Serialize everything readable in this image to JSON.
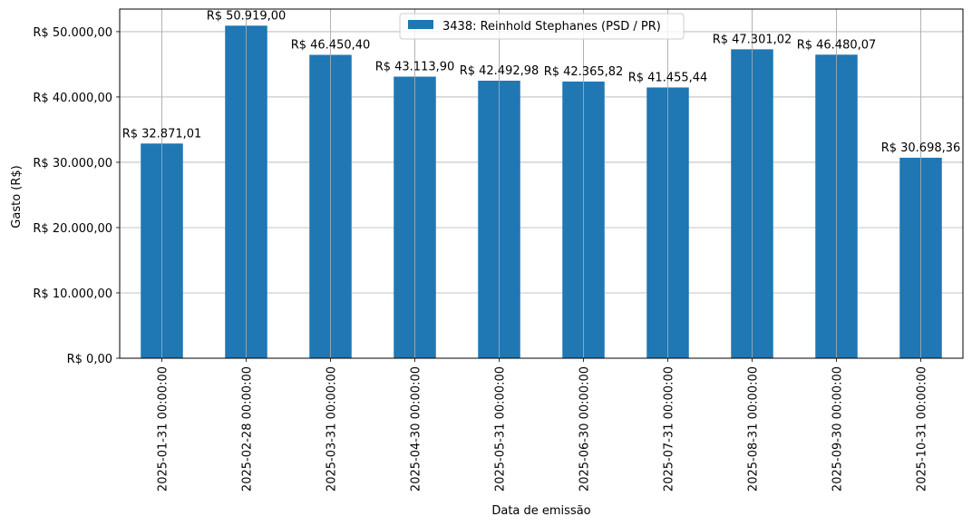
{
  "chart_data": {
    "type": "bar",
    "title": "",
    "xlabel": "Data de emissão",
    "ylabel": "Gasto (R$)",
    "ylim": [
      0,
      53460
    ],
    "yticks": [
      0,
      10000,
      20000,
      30000,
      40000,
      50000
    ],
    "ytick_labels": [
      "R$ 0,00",
      "R$ 10.000,00",
      "R$ 20.000,00",
      "R$ 30.000,00",
      "R$ 40.000,00",
      "R$ 50.000,00"
    ],
    "grid": true,
    "legend_position": "top-center",
    "categories": [
      "2025-01-31 00:00:00",
      "2025-02-28 00:00:00",
      "2025-03-31 00:00:00",
      "2025-04-30 00:00:00",
      "2025-05-31 00:00:00",
      "2025-06-30 00:00:00",
      "2025-07-31 00:00:00",
      "2025-08-31 00:00:00",
      "2025-09-30 00:00:00",
      "2025-10-31 00:00:00"
    ],
    "series": [
      {
        "name": "3438: Reinhold Stephanes (PSD / PR)",
        "color": "#1f77b4",
        "values": [
          32871.01,
          50919.0,
          46450.4,
          43113.9,
          42492.98,
          42365.82,
          41455.44,
          47301.02,
          46480.07,
          30698.36
        ],
        "labels": [
          "R$ 32.871,01",
          "R$ 50.919,00",
          "R$ 46.450,40",
          "R$ 43.113,90",
          "R$ 42.492,98",
          "R$ 42.365,82",
          "R$ 41.455,44",
          "R$ 47.301,02",
          "R$ 46.480,07",
          "R$ 30.698,36"
        ]
      }
    ]
  }
}
